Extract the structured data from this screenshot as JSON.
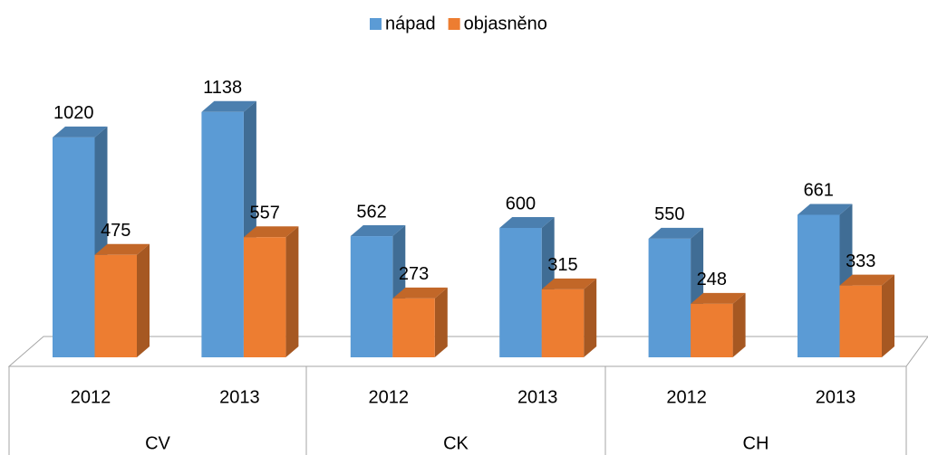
{
  "chart_data": {
    "type": "bar3d",
    "categories": [
      "2012",
      "2013",
      "2012",
      "2013",
      "2012",
      "2013"
    ],
    "groups": [
      "CV",
      "CK",
      "CH"
    ],
    "series": [
      {
        "name": "nápad",
        "color": "#5b9bd5",
        "values": [
          1020,
          1138,
          562,
          600,
          550,
          661
        ]
      },
      {
        "name": "objasněno",
        "color": "#ed7d31",
        "values": [
          475,
          557,
          273,
          315,
          248,
          333
        ]
      }
    ],
    "ylim": [
      0,
      1200
    ],
    "legend": "top"
  }
}
